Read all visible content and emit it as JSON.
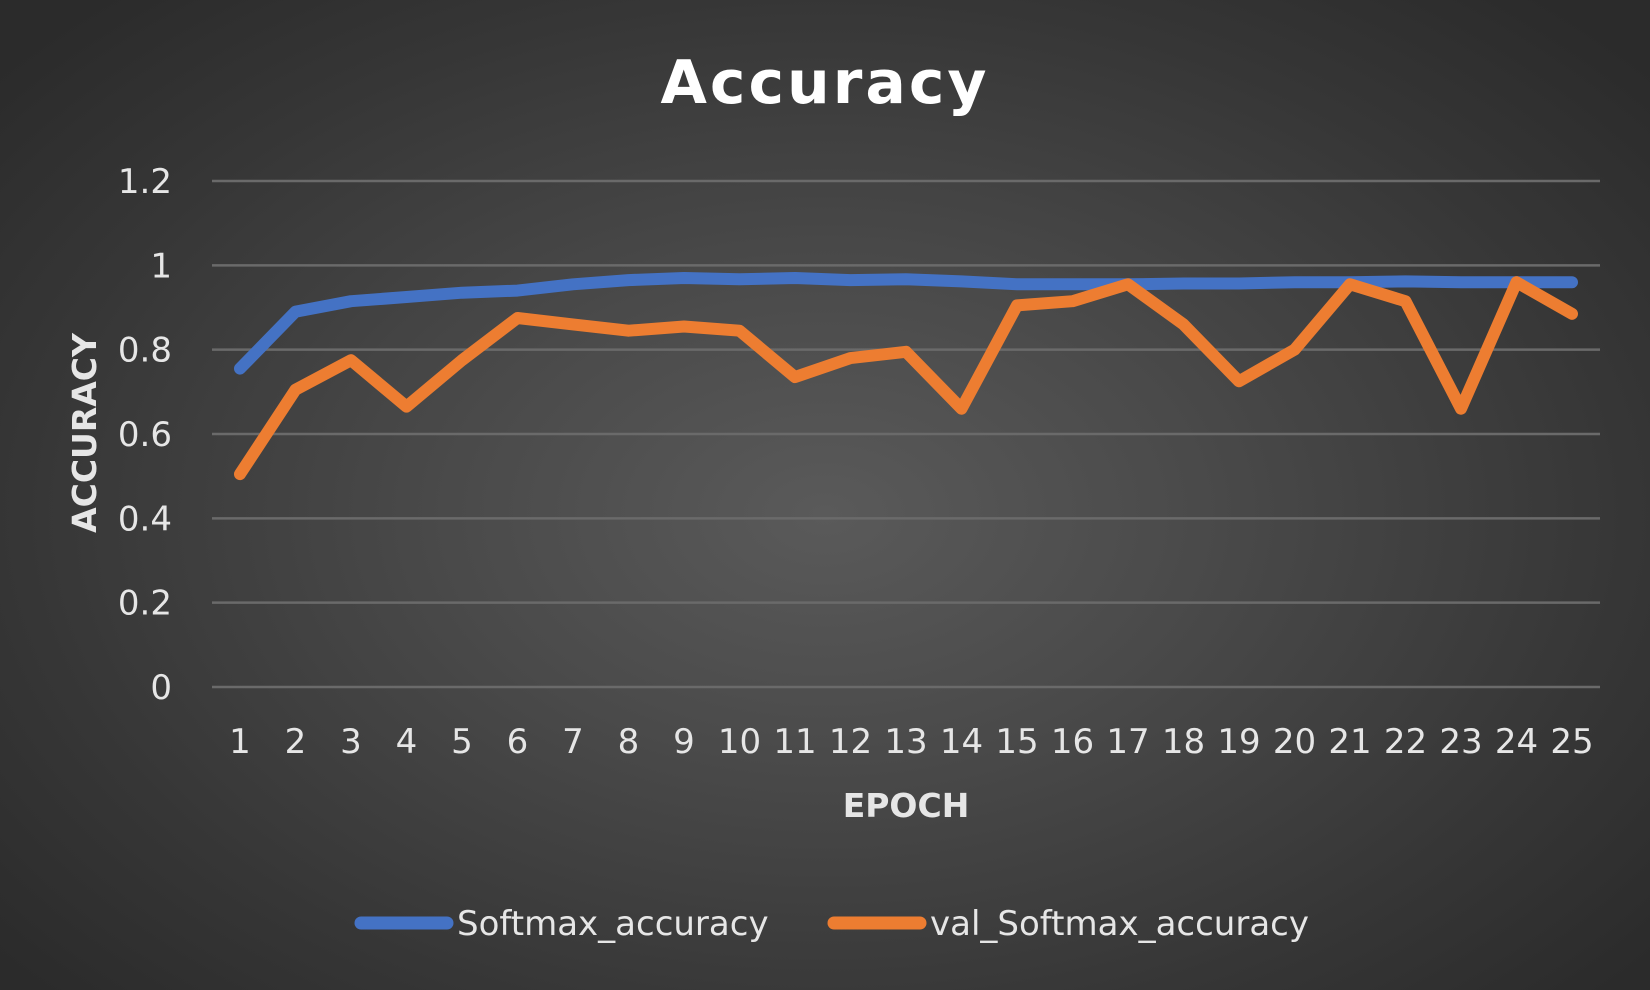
{
  "colors": {
    "series1": "#4472c4",
    "series2": "#ed7d31"
  },
  "chart_data": {
    "type": "line",
    "title": "Accuracy",
    "xlabel": "EPOCH",
    "ylabel": "ACCURACY",
    "x": [
      1,
      2,
      3,
      4,
      5,
      6,
      7,
      8,
      9,
      10,
      11,
      12,
      13,
      14,
      15,
      16,
      17,
      18,
      19,
      20,
      21,
      22,
      23,
      24,
      25
    ],
    "x_tick_labels": [
      "1",
      "2",
      "3",
      "4",
      "5",
      "6",
      "7",
      "8",
      "9",
      "10",
      "11",
      "12",
      "13",
      "14",
      "15",
      "16",
      "17",
      "18",
      "19",
      "20",
      "21",
      "22",
      "23",
      "24",
      "25"
    ],
    "y_tick_labels": [
      "0",
      "0.2",
      "0.4",
      "0.6",
      "0.8",
      "1",
      "1.2"
    ],
    "ylim": [
      0,
      1.2
    ],
    "grid": true,
    "legend_position": "bottom",
    "series": [
      {
        "name": "Softmax_accuracy",
        "color": "#4472c4",
        "values": [
          0.755,
          0.89,
          0.915,
          0.925,
          0.935,
          0.94,
          0.955,
          0.965,
          0.97,
          0.967,
          0.97,
          0.965,
          0.967,
          0.962,
          0.955,
          0.955,
          0.955,
          0.957,
          0.957,
          0.96,
          0.96,
          0.962,
          0.96,
          0.96,
          0.96
        ]
      },
      {
        "name": "val_Softmax_accuracy",
        "color": "#ed7d31",
        "values": [
          0.505,
          0.705,
          0.775,
          0.665,
          0.775,
          0.875,
          0.86,
          0.845,
          0.855,
          0.845,
          0.735,
          0.78,
          0.795,
          0.66,
          0.905,
          0.915,
          0.955,
          0.86,
          0.725,
          0.8,
          0.955,
          0.915,
          0.66,
          0.96,
          0.885
        ]
      }
    ]
  }
}
